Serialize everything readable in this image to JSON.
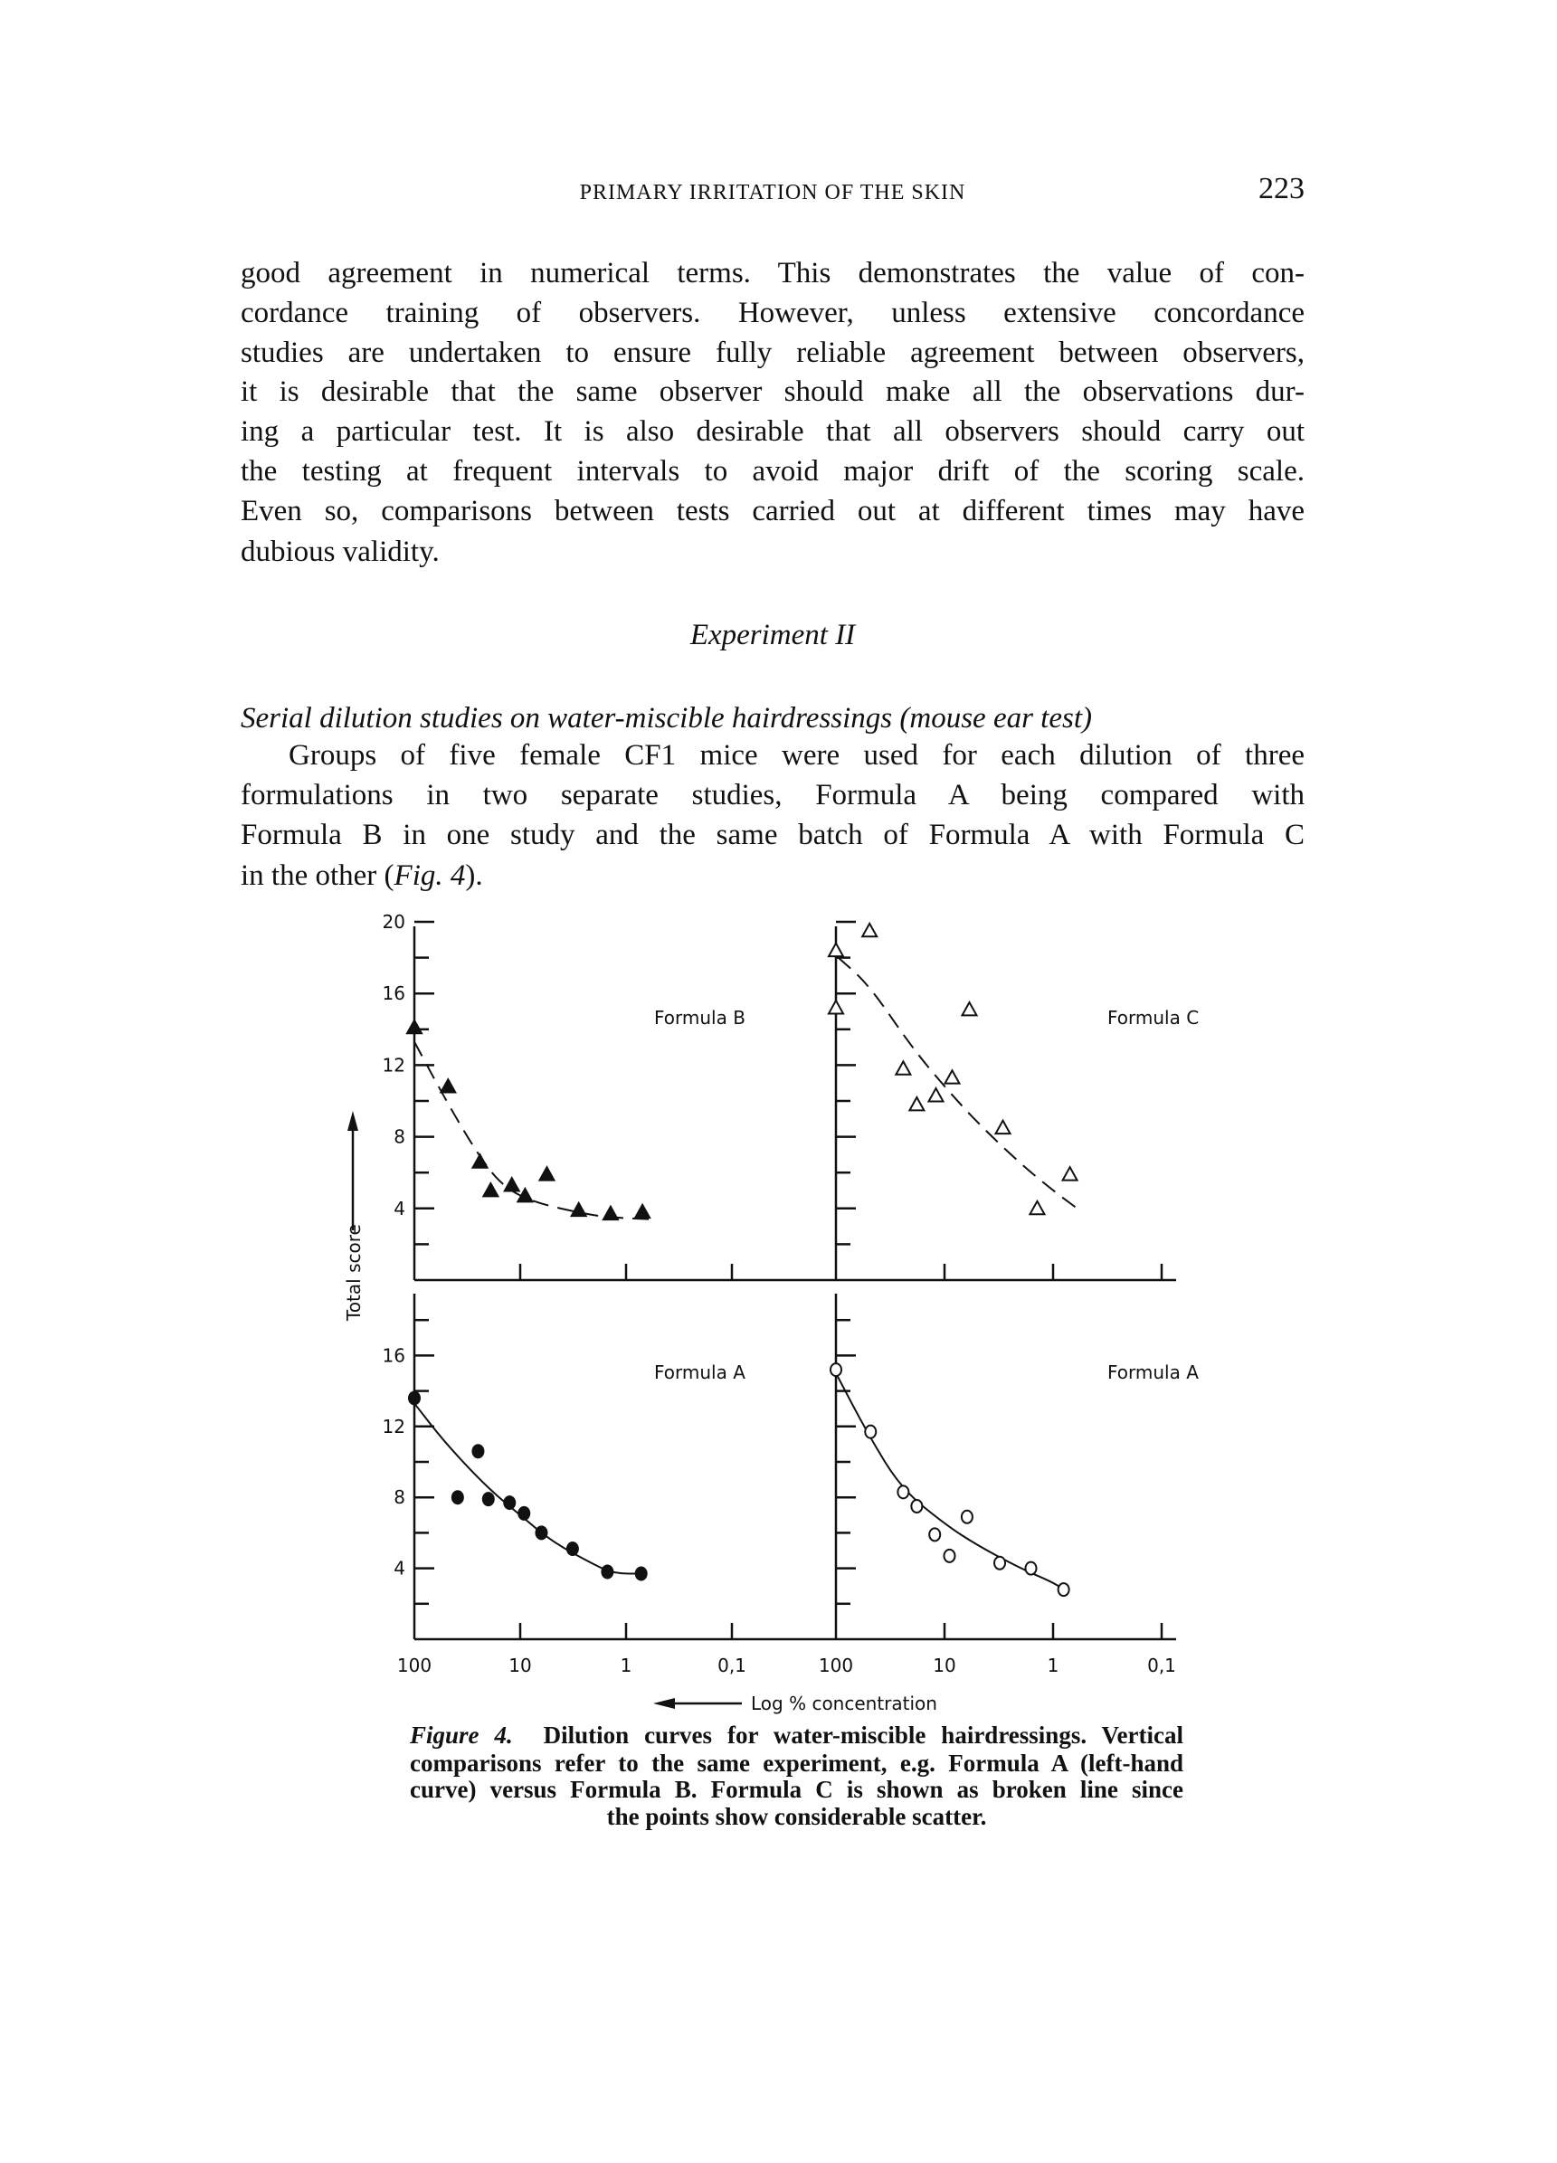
{
  "header": {
    "running_title": "PRIMARY IRRITATION OF THE SKIN",
    "page_number": "223"
  },
  "body": {
    "paragraph1_lines": [
      "good agreement in numerical terms. This demonstrates the value of con-",
      "cordance training of observers. However, unless extensive concordance",
      "studies are undertaken to ensure fully reliable agreement between observers,",
      "it is desirable that the same observer should make all the observations dur-",
      "ing a particular test. It is also desirable that all observers should carry out",
      "the testing at frequent intervals to avoid major drift of the scoring scale.",
      "Even so, comparisons between tests carried out at different times may have",
      "dubious validity."
    ],
    "section_heading": "Experiment II",
    "subheading": "Serial dilution studies on water-miscible hairdressings (mouse ear test)",
    "paragraph2_lines": [
      "Groups of five female CF1 mice were used for each dilution of three",
      "formulations in two separate studies, Formula A being compared with",
      "Formula B in one study and the same batch of Formula A with Formula C"
    ],
    "paragraph2_last": {
      "pre": "in the other (",
      "fig_ref": "Fig. 4",
      "post": ")."
    }
  },
  "figure": {
    "caption_label": "Figure 4.",
    "caption_lines": [
      "Dilution curves for water-miscible hairdressings. Vertical",
      "comparisons refer to the same experiment, e.g. Formula A (left-hand",
      "curve) versus Formula B. Formula C is shown as broken line since",
      "the points show considerable scatter."
    ]
  },
  "chart_data": [
    {
      "type": "scatter",
      "panel": "upper-left",
      "label": "Formula B",
      "marker": "filled-triangle",
      "fit_line": "dashed",
      "ylabel": "Total score",
      "xlabel": "Log % concentration",
      "x_scale": "log",
      "x_direction": "decreasing",
      "xlim": [
        100,
        0.1
      ],
      "ylim": [
        0,
        20
      ],
      "ytick_labels": [
        "20",
        "16",
        "12",
        "8",
        "4"
      ],
      "grid": false,
      "x": [
        100,
        48,
        24,
        19,
        12,
        9,
        5.6,
        2.8,
        1.4,
        0.7
      ],
      "y": [
        14.1,
        10.8,
        6.6,
        5.0,
        5.3,
        4.7,
        5.9,
        3.9,
        3.7,
        3.8
      ],
      "fit": {
        "x": [
          100,
          50,
          25,
          15,
          8,
          3,
          1.5,
          0.6
        ],
        "y": [
          13.3,
          10,
          7,
          5.3,
          4.4,
          3.8,
          3.5,
          3.4
        ]
      }
    },
    {
      "type": "scatter",
      "panel": "upper-right",
      "label": "Formula C",
      "marker": "open-triangle",
      "fit_line": "dashed",
      "x_scale": "log",
      "x_direction": "decreasing",
      "xlim": [
        100,
        0.1
      ],
      "ylim": [
        0,
        20
      ],
      "grid": false,
      "x": [
        49,
        100,
        100,
        5.9,
        24,
        8.5,
        12,
        18,
        2.9,
        1.4,
        0.7
      ],
      "y": [
        19.5,
        18.4,
        15.2,
        15.1,
        11.8,
        11.3,
        10.3,
        9.8,
        8.5,
        4.0,
        5.9
      ],
      "fit": {
        "x": [
          95,
          50,
          20,
          10,
          5,
          2,
          1,
          0.6
        ],
        "y": [
          18,
          16.5,
          13,
          10.8,
          8.8,
          6.5,
          5.0,
          4.0
        ]
      }
    },
    {
      "type": "scatter",
      "panel": "lower-left",
      "label": "Formula A",
      "marker": "filled-circle",
      "fit_line": "solid",
      "x_scale": "log",
      "x_direction": "decreasing",
      "xlim": [
        100,
        0.1
      ],
      "ylim": [
        0,
        20
      ],
      "ytick_labels": [
        "16",
        "12",
        "8",
        "4"
      ],
      "xtick_labels": [
        "100",
        "10",
        "1",
        "0,1"
      ],
      "grid": false,
      "x": [
        100,
        39,
        25,
        20,
        12.6,
        9.2,
        6.3,
        3.2,
        1.5,
        0.72
      ],
      "y": [
        13.6,
        8.0,
        10.6,
        7.9,
        7.7,
        7.1,
        6.0,
        5.1,
        3.8,
        3.7
      ],
      "fit": {
        "x": [
          100,
          50,
          20,
          10,
          5,
          2,
          1.3,
          0.7
        ],
        "y": [
          13.3,
          11,
          8.5,
          7,
          5.5,
          4.2,
          3.7,
          3.7
        ]
      }
    },
    {
      "type": "scatter",
      "panel": "lower-right",
      "label": "Formula A",
      "marker": "open-circle",
      "fit_line": "solid",
      "x_scale": "log",
      "x_direction": "decreasing",
      "xlim": [
        100,
        0.1
      ],
      "ylim": [
        0,
        20
      ],
      "xtick_labels": [
        "100",
        "10",
        "1",
        "0,1"
      ],
      "grid": false,
      "x": [
        100,
        48,
        24,
        18,
        6.2,
        12.3,
        9,
        3.1,
        1.6,
        0.8
      ],
      "y": [
        15.2,
        11.7,
        8.3,
        7.5,
        6.9,
        5.9,
        4.7,
        4.3,
        4.0,
        2.8
      ],
      "fit": {
        "x": [
          100,
          50,
          25,
          10,
          5,
          2,
          1,
          0.8
        ],
        "y": [
          15,
          11.5,
          8.5,
          6.5,
          5.3,
          4,
          3.2,
          2.8
        ]
      }
    }
  ]
}
